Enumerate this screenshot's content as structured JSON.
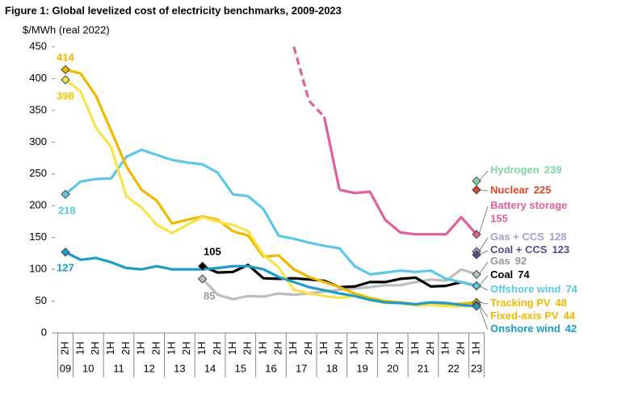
{
  "chart_data": {
    "type": "line",
    "title": "Figure 1: Global levelized cost of electricity benchmarks, 2009-2023",
    "y_label": "$/MWh (real 2022)",
    "categories": [
      "2H",
      "1H",
      "2H",
      "1H",
      "2H",
      "1H",
      "2H",
      "1H",
      "2H",
      "1H",
      "2H",
      "1H",
      "2H",
      "1H",
      "2H",
      "1H",
      "2H",
      "1H",
      "2H",
      "1H",
      "2H",
      "1H",
      "2H",
      "1H",
      "2H",
      "1H",
      "2H",
      "1H"
    ],
    "year_groups": [
      {
        "label": "09",
        "count": 1
      },
      {
        "label": "10",
        "count": 2
      },
      {
        "label": "11",
        "count": 2
      },
      {
        "label": "12",
        "count": 2
      },
      {
        "label": "13",
        "count": 2
      },
      {
        "label": "14",
        "count": 2
      },
      {
        "label": "15",
        "count": 2
      },
      {
        "label": "16",
        "count": 2
      },
      {
        "label": "17",
        "count": 2
      },
      {
        "label": "18",
        "count": 2
      },
      {
        "label": "19",
        "count": 2
      },
      {
        "label": "20",
        "count": 2
      },
      {
        "label": "21",
        "count": 2
      },
      {
        "label": "22",
        "count": 2
      },
      {
        "label": "23",
        "count": 1
      }
    ],
    "ylim": [
      0,
      450
    ],
    "yticks": [
      0,
      50,
      100,
      150,
      200,
      250,
      300,
      350,
      400,
      450
    ],
    "grid": false,
    "series": [
      {
        "name": "Hydrogen",
        "color": "#7dd6a8",
        "values": [
          null,
          null,
          null,
          null,
          null,
          null,
          null,
          null,
          null,
          null,
          null,
          null,
          null,
          null,
          null,
          null,
          null,
          null,
          null,
          null,
          null,
          null,
          null,
          null,
          null,
          null,
          null,
          239
        ]
      },
      {
        "name": "Nuclear",
        "color": "#d9472b",
        "values": [
          null,
          null,
          null,
          null,
          null,
          null,
          null,
          null,
          null,
          null,
          null,
          null,
          null,
          null,
          null,
          null,
          null,
          null,
          null,
          null,
          null,
          null,
          null,
          null,
          null,
          null,
          null,
          225
        ]
      },
      {
        "name": "Battery storage",
        "color": "#e0609c",
        "dash_until": 17,
        "values": [
          null,
          null,
          null,
          null,
          null,
          null,
          null,
          null,
          null,
          null,
          null,
          null,
          null,
          null,
          null,
          450,
          365,
          340,
          225,
          220,
          222,
          178,
          158,
          155,
          155,
          155,
          182,
          155
        ]
      },
      {
        "name": "Gas + CCS",
        "color": "#a99dcf",
        "values": [
          null,
          null,
          null,
          null,
          null,
          null,
          null,
          null,
          null,
          null,
          null,
          null,
          null,
          null,
          null,
          null,
          null,
          null,
          null,
          null,
          null,
          null,
          null,
          null,
          null,
          null,
          null,
          128
        ]
      },
      {
        "name": "Coal + CCS",
        "color": "#5a4a8c",
        "values": [
          null,
          null,
          null,
          null,
          null,
          null,
          null,
          null,
          null,
          null,
          null,
          null,
          null,
          null,
          null,
          null,
          null,
          null,
          null,
          null,
          null,
          null,
          null,
          null,
          null,
          null,
          null,
          123
        ]
      },
      {
        "name": "Gas",
        "color": "#bdbdbd",
        "values": [
          null,
          null,
          null,
          null,
          null,
          null,
          null,
          null,
          null,
          85,
          60,
          53,
          58,
          57,
          62,
          60,
          62,
          65,
          68,
          70,
          72,
          75,
          75,
          80,
          84,
          82,
          100,
          92
        ]
      },
      {
        "name": "Coal",
        "color": "#000000",
        "values": [
          null,
          null,
          null,
          null,
          null,
          null,
          null,
          null,
          null,
          105,
          95,
          96,
          107,
          86,
          85,
          86,
          84,
          82,
          72,
          73,
          80,
          80,
          85,
          87,
          73,
          74,
          80,
          74
        ]
      },
      {
        "name": "Offshore wind",
        "color": "#5cc8e8",
        "values": [
          218,
          238,
          242,
          243,
          277,
          288,
          280,
          272,
          268,
          265,
          252,
          218,
          215,
          195,
          153,
          148,
          142,
          137,
          133,
          105,
          92,
          95,
          98,
          96,
          98,
          85,
          80,
          74
        ]
      },
      {
        "name": "Tracking PV",
        "color": "#f2b800",
        "values": [
          414,
          408,
          373,
          318,
          262,
          225,
          208,
          172,
          178,
          183,
          178,
          160,
          153,
          120,
          122,
          100,
          88,
          80,
          72,
          62,
          55,
          50,
          48,
          45,
          47,
          45,
          46,
          48
        ]
      },
      {
        "name": "Fixed-axis PV",
        "color": "#f9e34b",
        "values": [
          398,
          380,
          323,
          292,
          215,
          197,
          170,
          157,
          170,
          182,
          175,
          170,
          160,
          123,
          103,
          68,
          62,
          58,
          55,
          58,
          52,
          47,
          47,
          43,
          44,
          42,
          42,
          44
        ]
      },
      {
        "name": "Onshore wind",
        "color": "#1d9cca",
        "values": [
          127,
          115,
          118,
          111,
          102,
          100,
          105,
          100,
          100,
          100,
          102,
          105,
          105,
          100,
          88,
          80,
          72,
          67,
          62,
          58,
          52,
          48,
          47,
          45,
          48,
          47,
          44,
          42
        ]
      }
    ]
  }
}
